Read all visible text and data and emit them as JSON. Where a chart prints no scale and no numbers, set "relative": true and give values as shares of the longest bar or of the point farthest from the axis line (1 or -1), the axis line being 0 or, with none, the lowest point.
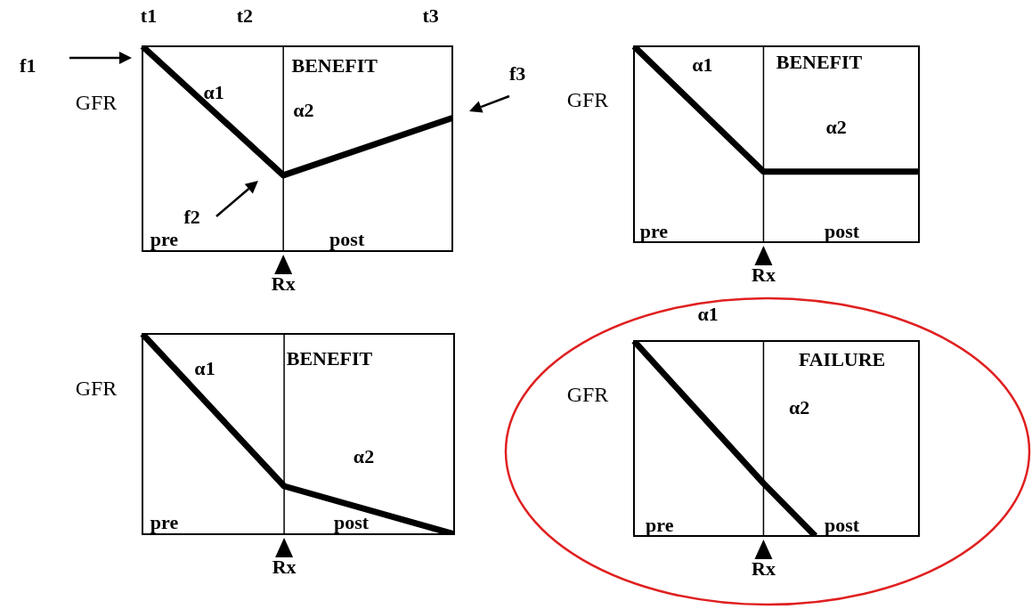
{
  "chart_data": [
    {
      "type": "line",
      "ylabel": "GFR",
      "categories": [
        null,
        null,
        null,
        null,
        null,
        null,
        null,
        null,
        null,
        null,
        null,
        null
      ],
      "values": [
        1,
        null,
        null,
        null,
        null,
        0.37,
        null,
        null,
        null,
        null,
        null,
        0.65
      ],
      "color": "#000000",
      "relative": true,
      "marker": "none",
      "annotations": [
        "t1",
        "t2",
        "t3",
        "α1",
        "BENEFIT",
        "α2",
        "pre",
        "post",
        "f1",
        "f2",
        "f3",
        "Rx"
      ]
    },
    {
      "type": "line",
      "ylabel": "GFR",
      "categories": [
        null,
        null,
        null,
        null,
        null,
        null,
        null,
        null,
        null,
        null,
        null,
        null
      ],
      "values": [
        1,
        null,
        null,
        null,
        null,
        0.36,
        null,
        null,
        null,
        null,
        null,
        0.36
      ],
      "color": "#000000",
      "relative": true,
      "marker": "none",
      "annotations": [
        "α1",
        "BENEFIT",
        "α2",
        "pre",
        "post",
        "Rx"
      ]
    },
    {
      "type": "line",
      "ylabel": "GFR",
      "categories": [
        null,
        null,
        null,
        null,
        null,
        null,
        null,
        null,
        null,
        null,
        null,
        null
      ],
      "values": [
        1,
        null,
        null,
        null,
        null,
        0.24,
        null,
        null,
        null,
        null,
        null,
        0
      ],
      "color": "#000000",
      "relative": true,
      "marker": "none",
      "annotations": [
        "α1",
        "BENEFIT",
        "α2",
        "pre",
        "post",
        "Rx"
      ]
    },
    {
      "type": "line",
      "ylabel": "GFR",
      "categories": [
        null,
        null,
        null,
        null,
        null,
        null,
        null,
        null,
        null,
        null,
        null,
        null
      ],
      "values": [
        1,
        null,
        null,
        null,
        null,
        0.27,
        null,
        0,
        null,
        null,
        null,
        null
      ],
      "color": "#000000",
      "relative": true,
      "marker": "none",
      "annotations": [
        "α1",
        "FAILURE",
        "α2",
        "pre",
        "post",
        "Rx"
      ]
    }
  ]
}
